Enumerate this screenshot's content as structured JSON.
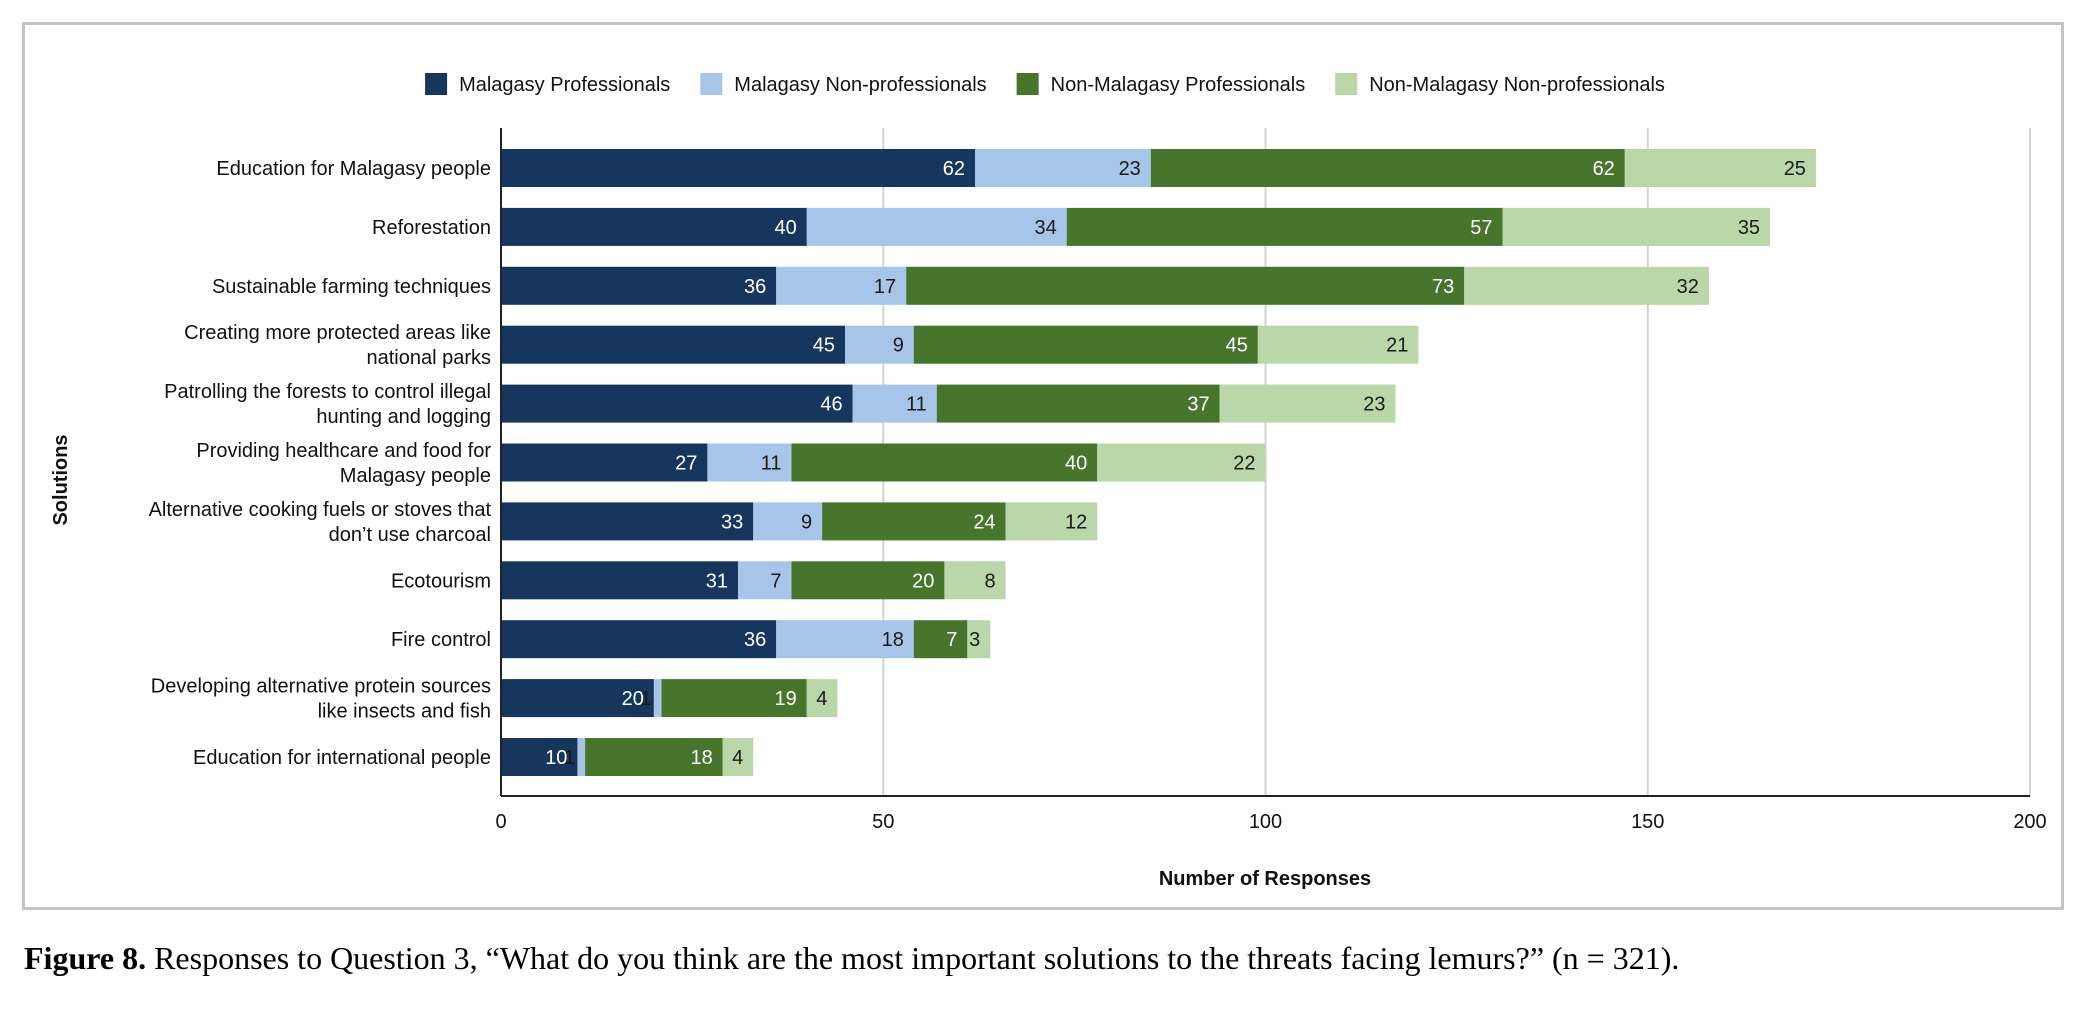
{
  "chart_data": {
    "type": "bar",
    "orientation": "horizontal",
    "stacked": true,
    "xlabel": "Number of Responses",
    "ylabel": "Solutions",
    "xlim": [
      0,
      200
    ],
    "xticks": [
      0,
      50,
      100,
      150,
      200
    ],
    "grid": true,
    "legend_position": "top",
    "categories": [
      [
        "Education for Malagasy people"
      ],
      [
        "Reforestation"
      ],
      [
        "Sustainable farming techniques"
      ],
      [
        "Creating more protected areas like",
        "national parks"
      ],
      [
        "Patrolling the forests to control illegal",
        "hunting and logging"
      ],
      [
        "Providing healthcare and food for",
        "Malagasy people"
      ],
      [
        "Alternative cooking fuels or stoves that",
        "don’t use charcoal"
      ],
      [
        "Ecotourism"
      ],
      [
        "Fire control"
      ],
      [
        "Developing alternative protein sources",
        "like insects and fish"
      ],
      [
        "Education for international people"
      ]
    ],
    "series": [
      {
        "name": "Malagasy Professionals",
        "color": "#17365d",
        "label_color": "#ffffff",
        "values": [
          62,
          40,
          36,
          45,
          46,
          27,
          33,
          31,
          36,
          20,
          10
        ]
      },
      {
        "name": "Malagasy Non-professionals",
        "color": "#a7c5e8",
        "label_color": "#1a1a1a",
        "values": [
          23,
          34,
          17,
          9,
          11,
          11,
          9,
          7,
          18,
          1,
          1
        ]
      },
      {
        "name": "Non-Malagasy Professionals",
        "color": "#47752c",
        "label_color": "#ffffff",
        "values": [
          62,
          57,
          73,
          45,
          37,
          40,
          24,
          20,
          7,
          19,
          18
        ]
      },
      {
        "name": "Non-Malagasy Non-professionals",
        "color": "#b9d7a8",
        "label_color": "#1a1a1a",
        "values": [
          25,
          35,
          32,
          21,
          23,
          22,
          12,
          8,
          3,
          4,
          4
        ]
      }
    ]
  },
  "caption": {
    "label": "Figure 8.",
    "text": " Responses to Question 3, “What do you think are the most important solutions to the threats facing lemurs?” (n = 321)."
  }
}
